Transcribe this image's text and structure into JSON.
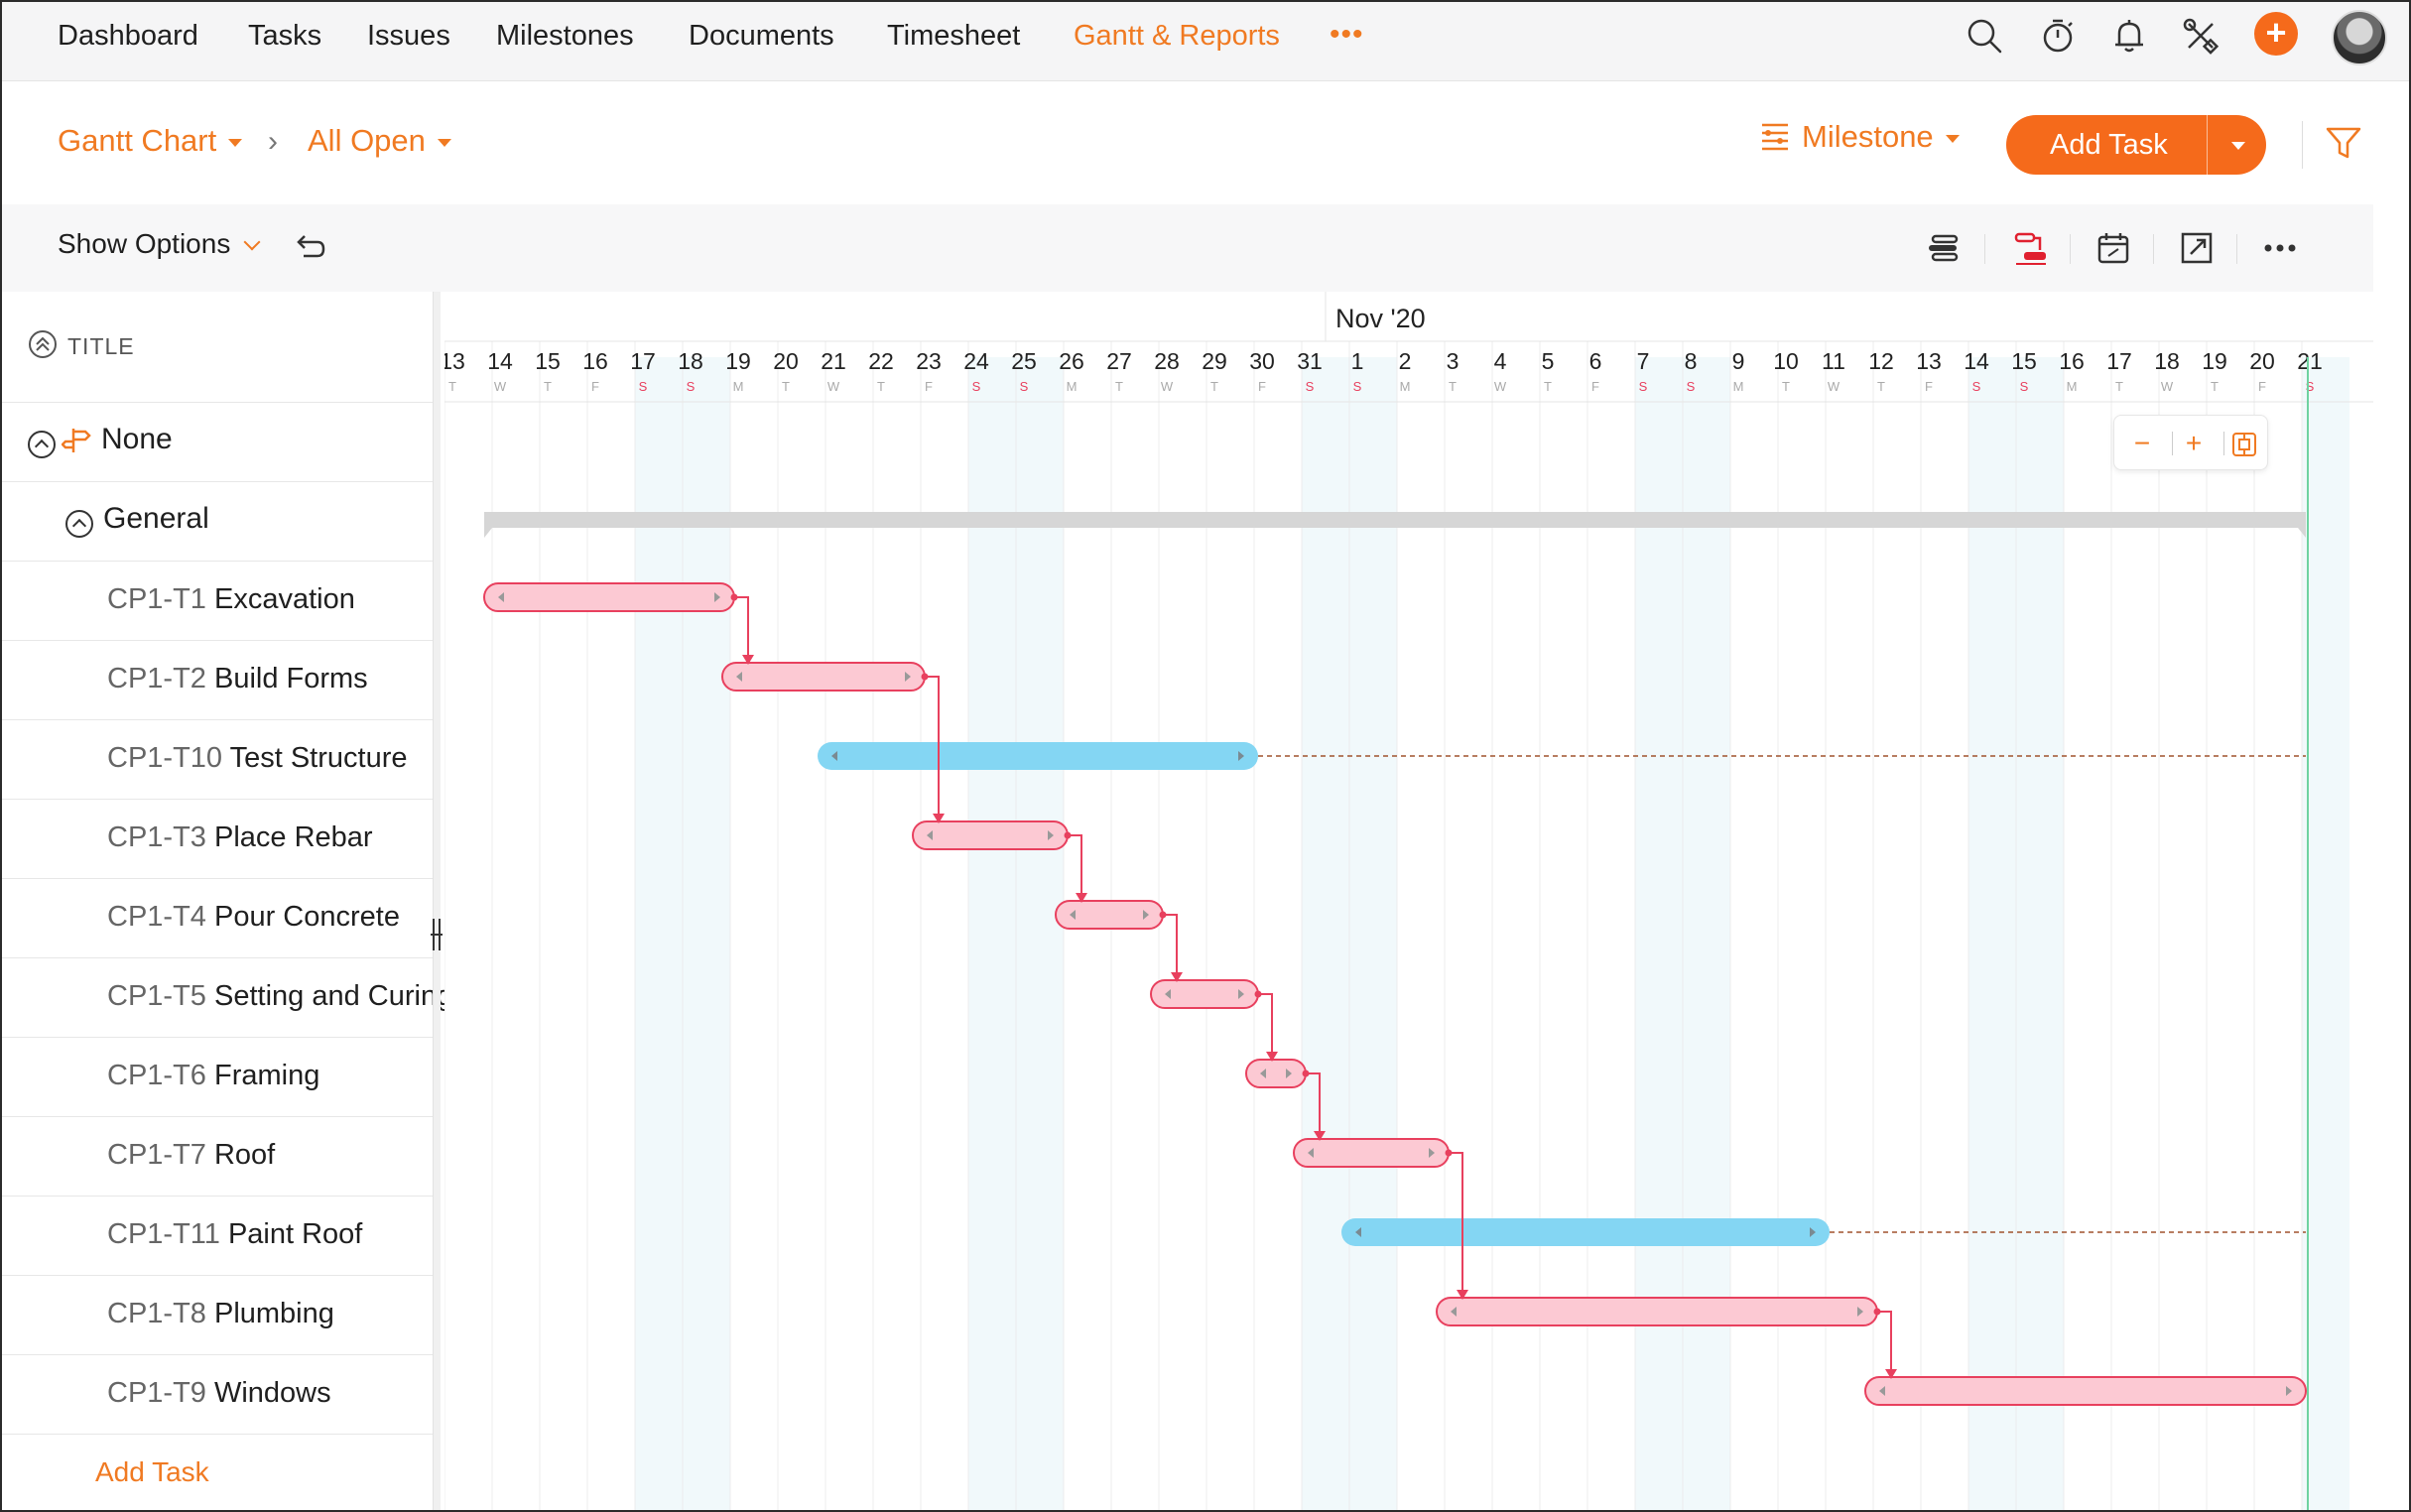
{
  "nav": {
    "items": [
      "Dashboard",
      "Tasks",
      "Issues",
      "Milestones",
      "Documents",
      "Timesheet",
      "Gantt & Reports"
    ],
    "active_index": 6,
    "more": "•••"
  },
  "tools": [
    "search-icon",
    "timer-icon",
    "bell-icon",
    "tools-icon",
    "add-icon",
    "avatar"
  ],
  "add_symbol": "+",
  "subheader": {
    "view": "Gantt Chart",
    "separator": "›",
    "filter": "All Open",
    "groupby": "Milestone",
    "add_task": "Add Task"
  },
  "options": {
    "show_options": "Show Options"
  },
  "left": {
    "title_header": "TITLE",
    "group": "None",
    "subgroup": "General",
    "tasks": [
      {
        "id": "CP1-T1",
        "name": "Excavation"
      },
      {
        "id": "CP1-T2",
        "name": "Build Forms"
      },
      {
        "id": "CP1-T10",
        "name": "Test Structure"
      },
      {
        "id": "CP1-T3",
        "name": "Place Rebar"
      },
      {
        "id": "CP1-T4",
        "name": "Pour Concrete"
      },
      {
        "id": "CP1-T5",
        "name": "Setting and Curing"
      },
      {
        "id": "CP1-T6",
        "name": "Framing"
      },
      {
        "id": "CP1-T7",
        "name": "Roof"
      },
      {
        "id": "CP1-T11",
        "name": "Paint Roof"
      },
      {
        "id": "CP1-T8",
        "name": "Plumbing"
      },
      {
        "id": "CP1-T9",
        "name": "Windows"
      }
    ],
    "add_task": "Add Task"
  },
  "timeline": {
    "month_label": "Nov '20",
    "days": [
      {
        "d": "13",
        "w": "T"
      },
      {
        "d": "14",
        "w": "W"
      },
      {
        "d": "15",
        "w": "T"
      },
      {
        "d": "16",
        "w": "F"
      },
      {
        "d": "17",
        "w": "S"
      },
      {
        "d": "18",
        "w": "S"
      },
      {
        "d": "19",
        "w": "M"
      },
      {
        "d": "20",
        "w": "T"
      },
      {
        "d": "21",
        "w": "W"
      },
      {
        "d": "22",
        "w": "T"
      },
      {
        "d": "23",
        "w": "F"
      },
      {
        "d": "24",
        "w": "S"
      },
      {
        "d": "25",
        "w": "S"
      },
      {
        "d": "26",
        "w": "M"
      },
      {
        "d": "27",
        "w": "T"
      },
      {
        "d": "28",
        "w": "W"
      },
      {
        "d": "29",
        "w": "T"
      },
      {
        "d": "30",
        "w": "F"
      },
      {
        "d": "31",
        "w": "S"
      },
      {
        "d": "1",
        "w": "S"
      },
      {
        "d": "2",
        "w": "M"
      },
      {
        "d": "3",
        "w": "T"
      },
      {
        "d": "4",
        "w": "W"
      },
      {
        "d": "5",
        "w": "T"
      },
      {
        "d": "6",
        "w": "F"
      },
      {
        "d": "7",
        "w": "S"
      },
      {
        "d": "8",
        "w": "S"
      },
      {
        "d": "9",
        "w": "M"
      },
      {
        "d": "10",
        "w": "T"
      },
      {
        "d": "11",
        "w": "W"
      },
      {
        "d": "12",
        "w": "T"
      },
      {
        "d": "13",
        "w": "F"
      },
      {
        "d": "14",
        "w": "S"
      },
      {
        "d": "15",
        "w": "S"
      },
      {
        "d": "16",
        "w": "M"
      },
      {
        "d": "17",
        "w": "T"
      },
      {
        "d": "18",
        "w": "W"
      },
      {
        "d": "19",
        "w": "T"
      },
      {
        "d": "20",
        "w": "F"
      },
      {
        "d": "21",
        "w": "S"
      }
    ],
    "bars": [
      {
        "task": "CP1-T1",
        "start": 1,
        "end": 6,
        "kind": "task"
      },
      {
        "task": "CP1-T2",
        "start": 6,
        "end": 10,
        "kind": "task"
      },
      {
        "task": "CP1-T10",
        "start": 8,
        "end": 17,
        "kind": "milestone-linked"
      },
      {
        "task": "CP1-T3",
        "start": 10,
        "end": 13,
        "kind": "task"
      },
      {
        "task": "CP1-T4",
        "start": 13,
        "end": 15,
        "kind": "task"
      },
      {
        "task": "CP1-T5",
        "start": 15,
        "end": 17,
        "kind": "task"
      },
      {
        "task": "CP1-T6",
        "start": 17,
        "end": 18,
        "kind": "task"
      },
      {
        "task": "CP1-T7",
        "start": 18,
        "end": 21,
        "kind": "task"
      },
      {
        "task": "CP1-T11",
        "start": 19,
        "end": 29,
        "kind": "milestone-linked"
      },
      {
        "task": "CP1-T8",
        "start": 21,
        "end": 30,
        "kind": "task"
      },
      {
        "task": "CP1-T9",
        "start": 30,
        "end": 39,
        "kind": "task"
      }
    ],
    "summary_span": {
      "start": 1,
      "end": 39
    },
    "dependencies": [
      [
        0,
        1
      ],
      [
        1,
        3
      ],
      [
        3,
        4
      ],
      [
        4,
        5
      ],
      [
        5,
        6
      ],
      [
        6,
        7
      ],
      [
        7,
        9
      ],
      [
        9,
        10
      ]
    ],
    "zoom": {
      "out": "−",
      "in": "+"
    },
    "colors": {
      "task_fill": "#fcc9d3",
      "task_stroke": "#e8405e",
      "blue_fill": "#84d6f3",
      "weekend_fill": "#f1f9fb",
      "today_line": "#6fd3a0",
      "accent": "#f07a22"
    }
  }
}
